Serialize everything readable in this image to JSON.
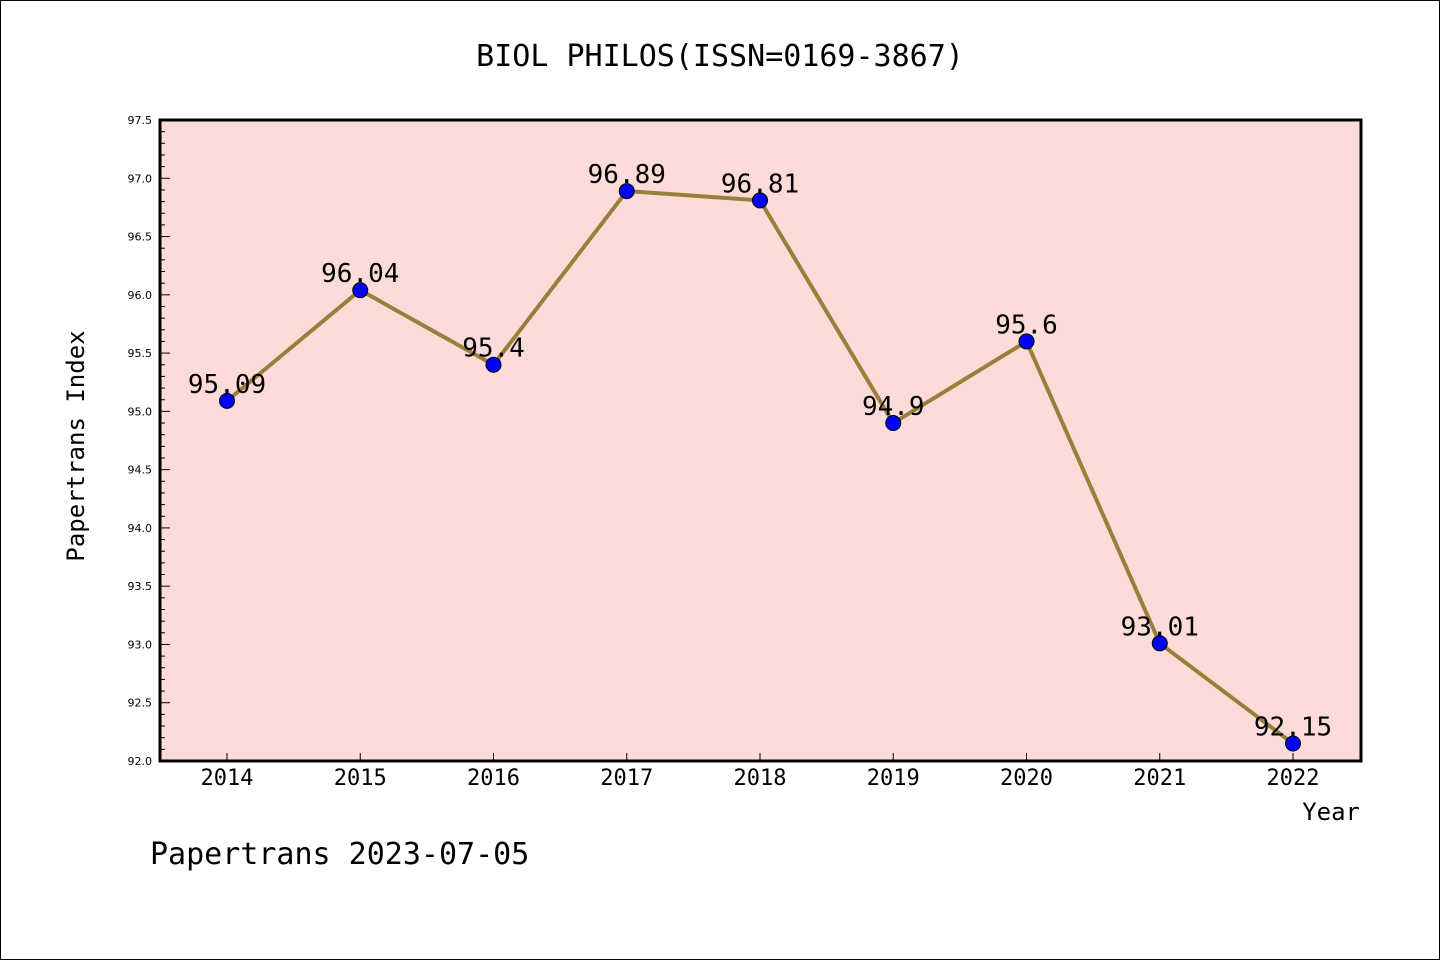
{
  "chart_data": {
    "type": "line",
    "title": "BIOL PHILOS(ISSN=0169-3867)",
    "xlabel": "Year",
    "ylabel": "Papertrans Index",
    "footer": "Papertrans 2023-07-05",
    "categories": [
      "2014",
      "2015",
      "2016",
      "2017",
      "2018",
      "2019",
      "2020",
      "2021",
      "2022"
    ],
    "values": [
      95.09,
      96.04,
      95.4,
      96.89,
      96.81,
      94.9,
      95.6,
      93.01,
      92.15
    ],
    "data_labels": [
      "95.09",
      "96.04",
      "95.4",
      "96.89",
      "96.81",
      "94.9",
      "95.6",
      "93.01",
      "92.15"
    ],
    "ylim": [
      92.0,
      97.5
    ],
    "yticks": [
      92.0,
      92.5,
      93.0,
      93.5,
      94.0,
      94.5,
      95.0,
      95.5,
      96.0,
      96.5,
      97.0,
      97.5
    ],
    "ytick_labels": [
      "92.0",
      "92.5",
      "93.0",
      "93.5",
      "94.0",
      "94.5",
      "95.0",
      "95.5",
      "96.0",
      "96.5",
      "97.0",
      "97.5"
    ],
    "grid": false,
    "legend": "none",
    "colors": {
      "plot_background": "#fddbd9",
      "line": "#9a7e3c",
      "marker": "#0000ff"
    }
  }
}
